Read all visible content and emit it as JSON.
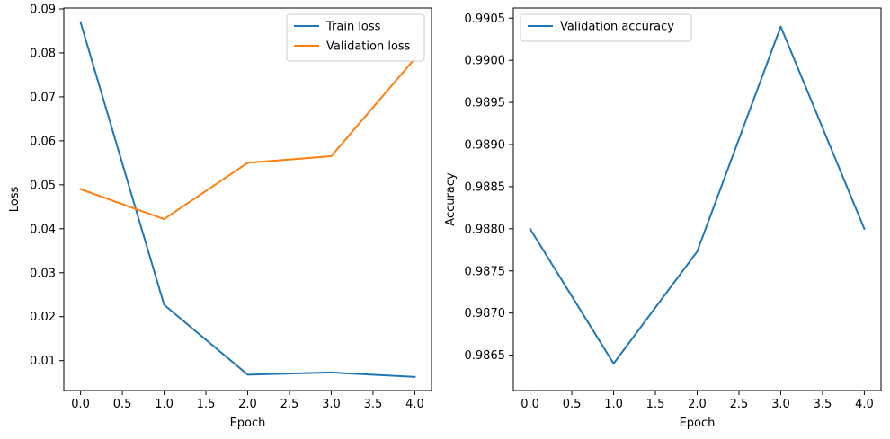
{
  "chart_data": [
    {
      "type": "line",
      "xlabel": "Epoch",
      "ylabel": "Loss",
      "xlim": [
        -0.2,
        4.2
      ],
      "ylim": [
        0.0032,
        0.0902
      ],
      "xticks": [
        0.0,
        0.5,
        1.0,
        1.5,
        2.0,
        2.5,
        3.0,
        3.5,
        4.0
      ],
      "xtick_labels": [
        "0.0",
        "0.5",
        "1.0",
        "1.5",
        "2.0",
        "2.5",
        "3.0",
        "3.5",
        "4.0"
      ],
      "yticks": [
        0.01,
        0.02,
        0.03,
        0.04,
        0.05,
        0.06,
        0.07,
        0.08,
        0.09
      ],
      "ytick_labels": [
        "0.01",
        "0.02",
        "0.03",
        "0.04",
        "0.05",
        "0.06",
        "0.07",
        "0.08",
        "0.09"
      ],
      "grid": false,
      "legend_position": "top-right",
      "x": [
        0,
        1,
        2,
        3,
        4
      ],
      "series": [
        {
          "name": "Train loss",
          "color": "#1f77b4",
          "values": [
            0.087,
            0.0227,
            0.0068,
            0.0073,
            0.0063
          ]
        },
        {
          "name": "Validation loss",
          "color": "#ff7f0e",
          "values": [
            0.049,
            0.0422,
            0.055,
            0.0565,
            0.0787
          ]
        }
      ]
    },
    {
      "type": "line",
      "xlabel": "Epoch",
      "ylabel": "Accuracy",
      "xlim": [
        -0.2,
        4.2
      ],
      "ylim": [
        0.98608,
        0.99062
      ],
      "xticks": [
        0.0,
        0.5,
        1.0,
        1.5,
        2.0,
        2.5,
        3.0,
        3.5,
        4.0
      ],
      "xtick_labels": [
        "0.0",
        "0.5",
        "1.0",
        "1.5",
        "2.0",
        "2.5",
        "3.0",
        "3.5",
        "4.0"
      ],
      "yticks": [
        0.9865,
        0.987,
        0.9875,
        0.988,
        0.9885,
        0.989,
        0.9895,
        0.99,
        0.9905
      ],
      "ytick_labels": [
        "0.9865",
        "0.9870",
        "0.9875",
        "0.9880",
        "0.9885",
        "0.9890",
        "0.9895",
        "0.9900",
        "0.9905"
      ],
      "grid": false,
      "legend_position": "top-left",
      "x": [
        0,
        1,
        2,
        3,
        4
      ],
      "series": [
        {
          "name": "Validation accuracy",
          "color": "#1f77b4",
          "values": [
            0.988,
            0.9864,
            0.98773,
            0.9904,
            0.988
          ]
        }
      ]
    }
  ]
}
